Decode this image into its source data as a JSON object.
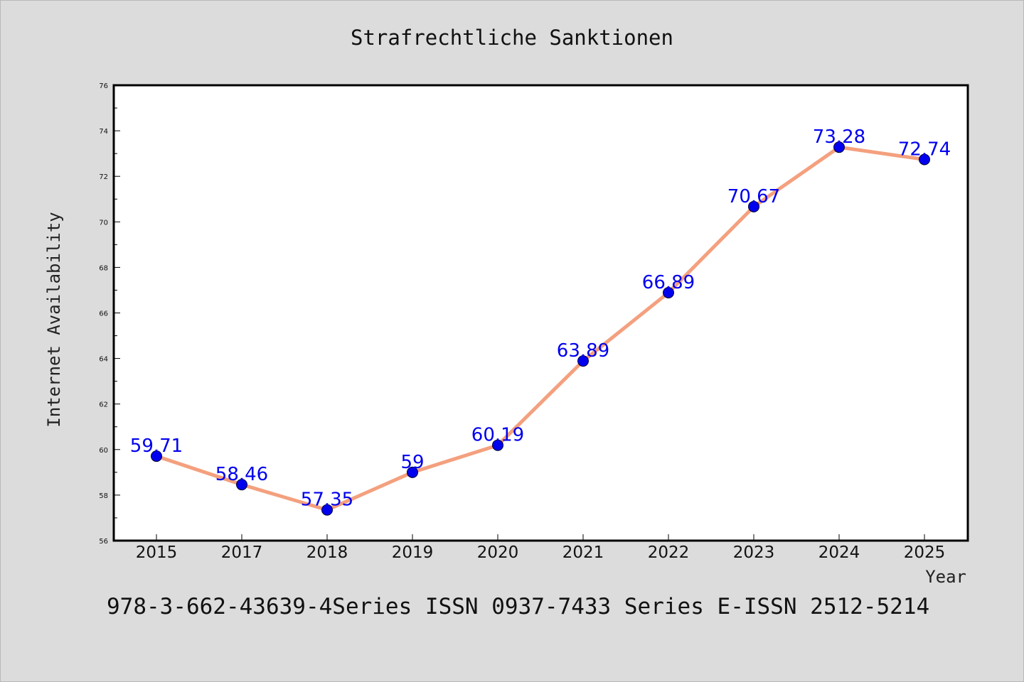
{
  "chart_data": {
    "type": "line",
    "title": "Strafrechtliche Sanktionen",
    "xlabel": "Year",
    "ylabel": "Internet Availability",
    "categories": [
      "2015",
      "2017",
      "2018",
      "2019",
      "2020",
      "2021",
      "2022",
      "2023",
      "2024",
      "2025"
    ],
    "series": [
      {
        "values": [
          59.71,
          58.46,
          57.35,
          59,
          60.19,
          63.89,
          66.89,
          70.67,
          73.28,
          72.74
        ],
        "labels": [
          "59.71",
          "58.46",
          "57.35",
          "59",
          "60.19",
          "63.89",
          "66.89",
          "70.67",
          "73.28",
          "72.74"
        ],
        "line_color": "#f4a07e",
        "marker_color": "#0000ee"
      }
    ],
    "ylim": [
      56,
      76
    ],
    "yticks": [
      "56",
      "58",
      "60",
      "62",
      "64",
      "66",
      "68",
      "70",
      "72",
      "74",
      "76"
    ],
    "grid": false,
    "legend": "none"
  },
  "footer_text": "978-3-662-43639-4Series ISSN 0937-7433 Series E-ISSN 2512-5214"
}
